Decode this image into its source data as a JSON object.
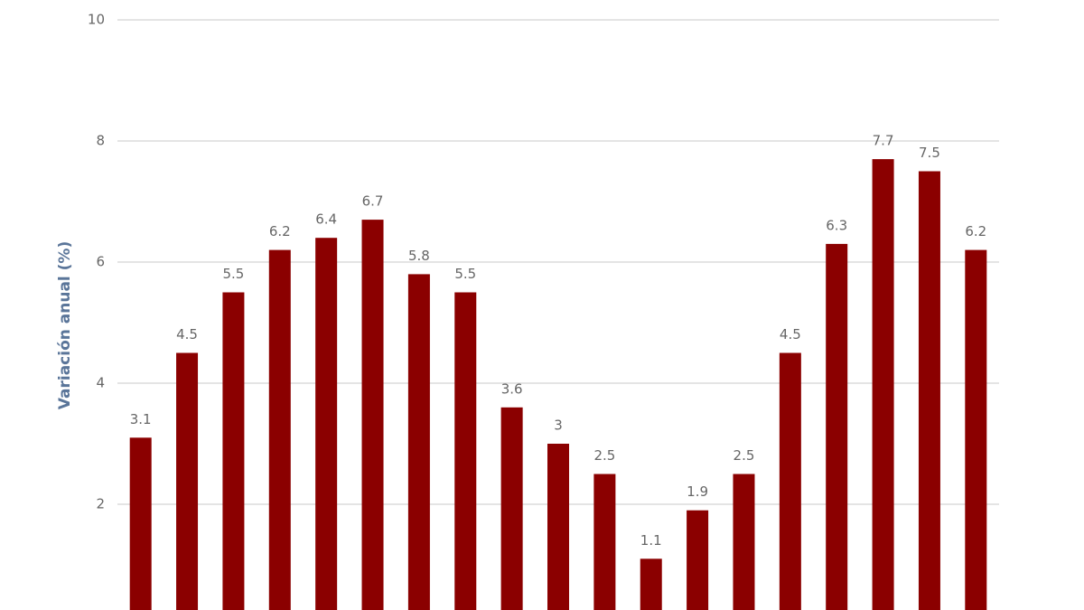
{
  "chart_data": {
    "type": "bar",
    "y_label": "Variación anual (%)",
    "categories": [
      null,
      null,
      null,
      null,
      null,
      null,
      null,
      null,
      null,
      null,
      null,
      null,
      null,
      null,
      null,
      null,
      null,
      null,
      null
    ],
    "values": [
      3.1,
      4.5,
      5.5,
      6.2,
      6.4,
      6.7,
      5.8,
      5.5,
      3.6,
      3,
      2.5,
      1.1,
      1.9,
      2.5,
      4.5,
      6.3,
      7.7,
      7.5,
      6.2
    ],
    "color": "#8b0000",
    "ylim": [
      0,
      10
    ],
    "yticks": [
      2,
      4,
      6,
      8,
      10
    ],
    "grid": true
  }
}
